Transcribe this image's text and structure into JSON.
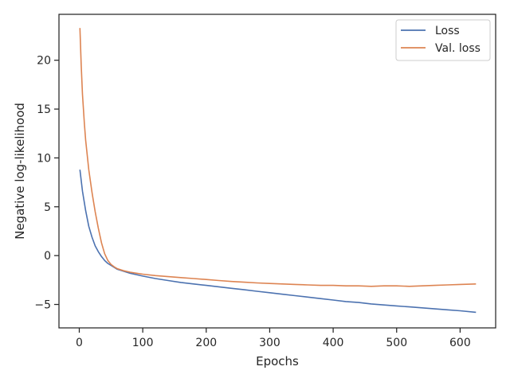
{
  "chart_data": {
    "type": "line",
    "xlabel": "Epochs",
    "ylabel": "Negative log-likelihood",
    "xlim": [
      -32,
      656
    ],
    "ylim": [
      -7.4,
      24.7
    ],
    "xticks": [
      0,
      100,
      200,
      300,
      400,
      500,
      600
    ],
    "yticks": [
      -5,
      0,
      5,
      10,
      15,
      20
    ],
    "ytick_labels": [
      "−5",
      "0",
      "5",
      "10",
      "15",
      "20"
    ],
    "grid": false,
    "legend": "top-right",
    "series": [
      {
        "name": "Loss",
        "color": "#4c72b0",
        "x": [
          1,
          5,
          10,
          15,
          20,
          25,
          30,
          35,
          40,
          45,
          50,
          55,
          60,
          70,
          80,
          90,
          100,
          120,
          140,
          160,
          180,
          200,
          220,
          240,
          260,
          280,
          300,
          320,
          340,
          360,
          380,
          400,
          420,
          440,
          460,
          480,
          500,
          520,
          540,
          560,
          580,
          600,
          625
        ],
        "y": [
          8.8,
          6.6,
          4.6,
          3.0,
          1.9,
          1.0,
          0.4,
          -0.1,
          -0.5,
          -0.8,
          -1.0,
          -1.2,
          -1.4,
          -1.6,
          -1.8,
          -1.95,
          -2.1,
          -2.35,
          -2.55,
          -2.75,
          -2.9,
          -3.05,
          -3.2,
          -3.35,
          -3.5,
          -3.65,
          -3.8,
          -3.95,
          -4.1,
          -4.25,
          -4.4,
          -4.55,
          -4.7,
          -4.8,
          -4.95,
          -5.05,
          -5.15,
          -5.25,
          -5.35,
          -5.45,
          -5.55,
          -5.65,
          -5.8
        ]
      },
      {
        "name": "Val. loss",
        "color": "#dd8452",
        "x": [
          1,
          3,
          5,
          8,
          10,
          15,
          20,
          25,
          30,
          35,
          40,
          45,
          50,
          55,
          60,
          70,
          80,
          90,
          100,
          120,
          140,
          160,
          180,
          200,
          220,
          240,
          260,
          280,
          300,
          320,
          340,
          360,
          380,
          400,
          420,
          440,
          460,
          480,
          500,
          520,
          540,
          560,
          580,
          600,
          625
        ],
        "y": [
          23.3,
          19.5,
          16.5,
          13.5,
          11.8,
          8.8,
          6.5,
          4.5,
          2.8,
          1.3,
          0.2,
          -0.5,
          -0.9,
          -1.15,
          -1.35,
          -1.55,
          -1.7,
          -1.8,
          -1.9,
          -2.05,
          -2.15,
          -2.25,
          -2.35,
          -2.45,
          -2.55,
          -2.65,
          -2.72,
          -2.8,
          -2.85,
          -2.9,
          -2.95,
          -3.0,
          -3.05,
          -3.05,
          -3.1,
          -3.1,
          -3.15,
          -3.1,
          -3.1,
          -3.15,
          -3.1,
          -3.05,
          -3.0,
          -2.95,
          -2.9
        ]
      }
    ]
  }
}
